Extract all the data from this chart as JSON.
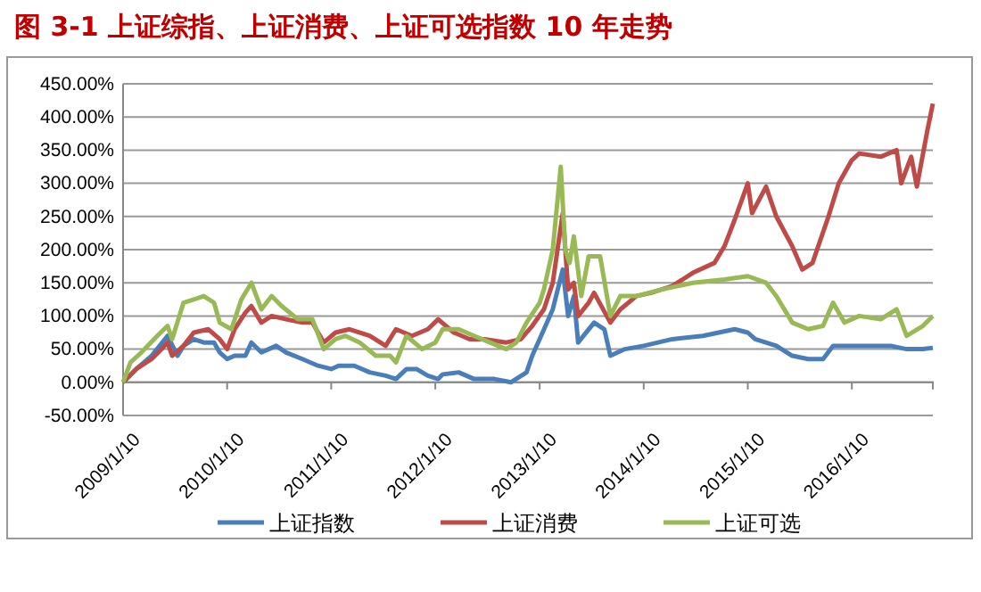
{
  "chart_data": {
    "type": "line",
    "title": "图 3-1  上证综指、上证消费、上证可选指数 10 年走势",
    "xlim": [
      "2009-01-10",
      "2016-10-20"
    ],
    "xticks": [
      {
        "value": "2009-01-10",
        "label": "2009/1/10"
      },
      {
        "value": "2010-01-10",
        "label": "2010/1/10"
      },
      {
        "value": "2011-01-10",
        "label": "2011/1/10"
      },
      {
        "value": "2012-01-10",
        "label": "2012/1/10"
      },
      {
        "value": "2013-01-10",
        "label": "2013/1/10"
      },
      {
        "value": "2014-01-10",
        "label": "2014/1/10"
      },
      {
        "value": "2015-01-10",
        "label": "2015/1/10"
      },
      {
        "value": "2016-01-10",
        "label": "2016/1/10"
      }
    ],
    "ylim": [
      -50,
      450
    ],
    "yticks": [
      {
        "value": -50,
        "label": "-50.00%"
      },
      {
        "value": 0,
        "label": "0.00%"
      },
      {
        "value": 50,
        "label": "50.00%"
      },
      {
        "value": 100,
        "label": "100.00%"
      },
      {
        "value": 150,
        "label": "150.00%"
      },
      {
        "value": 200,
        "label": "200.00%"
      },
      {
        "value": 250,
        "label": "250.00%"
      },
      {
        "value": 300,
        "label": "300.00%"
      },
      {
        "value": 350,
        "label": "350.00%"
      },
      {
        "value": 400,
        "label": "400.00%"
      },
      {
        "value": 450,
        "label": "450.00%"
      }
    ],
    "grid": "y",
    "legend": "bottom",
    "marker": "none",
    "line_style": "solid",
    "series": [
      {
        "name": "上证指数",
        "color": "#4a7ebb",
        "x": [
          "2009-01-10",
          "2009-02-25",
          "2009-04-20",
          "2009-06-15",
          "2009-07-20",
          "2009-08-10",
          "2009-09-15",
          "2009-10-20",
          "2009-11-25",
          "2009-12-15",
          "2010-01-10",
          "2010-02-05",
          "2010-03-15",
          "2010-04-05",
          "2010-05-10",
          "2010-07-01",
          "2010-08-05",
          "2010-10-01",
          "2010-11-25",
          "2011-01-10",
          "2011-02-05",
          "2011-04-01",
          "2011-05-25",
          "2011-07-20",
          "2011-08-25",
          "2011-10-01",
          "2011-11-05",
          "2011-12-15",
          "2012-01-20",
          "2012-02-05",
          "2012-04-01",
          "2012-05-25",
          "2012-08-05",
          "2012-10-01",
          "2012-11-25",
          "2012-12-15",
          "2013-01-15",
          "2013-02-25",
          "2013-04-01",
          "2013-04-20",
          "2013-05-10",
          "2013-05-25",
          "2013-07-20",
          "2013-08-25",
          "2013-09-15",
          "2013-11-05",
          "2014-01-10",
          "2014-04-20",
          "2014-08-05",
          "2014-11-25",
          "2015-01-10",
          "2015-02-05",
          "2015-04-20",
          "2015-06-15",
          "2015-08-10",
          "2015-10-01",
          "2015-11-05",
          "2016-01-10",
          "2016-03-15",
          "2016-05-25",
          "2016-07-20",
          "2016-09-15",
          "2016-10-20"
        ],
        "values": [
          0,
          20,
          40,
          70,
          40,
          55,
          65,
          60,
          60,
          45,
          35,
          40,
          40,
          60,
          45,
          55,
          45,
          35,
          25,
          20,
          25,
          25,
          15,
          10,
          5,
          20,
          20,
          10,
          5,
          12,
          15,
          5,
          5,
          0,
          15,
          40,
          70,
          110,
          170,
          100,
          130,
          60,
          90,
          80,
          40,
          50,
          55,
          65,
          70,
          80,
          75,
          65,
          55,
          40,
          35,
          35,
          55,
          55,
          55,
          55,
          50,
          50,
          52
        ]
      },
      {
        "name": "上证消费",
        "color": "#be4b48",
        "x": [
          "2009-01-10",
          "2009-02-25",
          "2009-04-20",
          "2009-05-25",
          "2009-06-15",
          "2009-07-01",
          "2009-08-10",
          "2009-09-15",
          "2009-11-05",
          "2009-12-15",
          "2010-01-10",
          "2010-02-05",
          "2010-03-15",
          "2010-04-05",
          "2010-05-10",
          "2010-06-15",
          "2010-08-05",
          "2010-10-01",
          "2010-11-05",
          "2010-12-15",
          "2011-01-25",
          "2011-03-15",
          "2011-05-25",
          "2011-07-20",
          "2011-08-25",
          "2011-10-20",
          "2011-12-15",
          "2012-01-20",
          "2012-03-15",
          "2012-05-10",
          "2012-07-01",
          "2012-09-15",
          "2012-11-05",
          "2012-12-15",
          "2013-01-25",
          "2013-02-25",
          "2013-04-01",
          "2013-04-20",
          "2013-05-10",
          "2013-05-25",
          "2013-07-01",
          "2013-07-20",
          "2013-09-15",
          "2013-10-20",
          "2013-12-15",
          "2014-02-05",
          "2014-04-20",
          "2014-07-01",
          "2014-09-15",
          "2014-10-20",
          "2014-11-25",
          "2015-01-10",
          "2015-01-25",
          "2015-03-15",
          "2015-04-20",
          "2015-06-15",
          "2015-07-20",
          "2015-08-25",
          "2015-10-20",
          "2015-11-25",
          "2016-01-10",
          "2016-02-05",
          "2016-04-20",
          "2016-06-15",
          "2016-07-01",
          "2016-08-05",
          "2016-08-25",
          "2016-10-01",
          "2016-10-20"
        ],
        "values": [
          0,
          20,
          35,
          50,
          60,
          40,
          55,
          75,
          80,
          65,
          50,
          80,
          105,
          115,
          90,
          100,
          95,
          90,
          90,
          60,
          75,
          80,
          70,
          55,
          80,
          70,
          80,
          95,
          75,
          65,
          65,
          60,
          65,
          85,
          110,
          150,
          255,
          140,
          150,
          100,
          120,
          135,
          90,
          110,
          130,
          135,
          145,
          165,
          180,
          205,
          245,
          300,
          255,
          295,
          250,
          205,
          170,
          180,
          250,
          300,
          335,
          345,
          340,
          350,
          300,
          340,
          295,
          380,
          420
        ]
      },
      {
        "name": "上证可选",
        "color": "#98b954",
        "x": [
          "2009-01-10",
          "2009-02-05",
          "2009-03-15",
          "2009-05-10",
          "2009-06-15",
          "2009-07-01",
          "2009-08-10",
          "2009-09-15",
          "2009-10-20",
          "2009-11-25",
          "2009-12-15",
          "2010-01-25",
          "2010-03-01",
          "2010-04-05",
          "2010-05-10",
          "2010-06-15",
          "2010-07-20",
          "2010-09-15",
          "2010-11-05",
          "2010-12-15",
          "2011-01-25",
          "2011-03-01",
          "2011-04-20",
          "2011-06-15",
          "2011-08-05",
          "2011-08-25",
          "2011-10-01",
          "2011-11-25",
          "2012-01-10",
          "2012-02-05",
          "2012-04-01",
          "2012-05-25",
          "2012-07-20",
          "2012-09-15",
          "2012-10-20",
          "2012-11-25",
          "2013-01-10",
          "2013-01-25",
          "2013-02-25",
          "2013-03-25",
          "2013-04-10",
          "2013-04-25",
          "2013-05-10",
          "2013-06-05",
          "2013-07-01",
          "2013-08-10",
          "2013-09-15",
          "2013-10-20",
          "2013-12-15",
          "2014-03-15",
          "2014-07-01",
          "2014-10-20",
          "2015-01-10",
          "2015-03-15",
          "2015-04-20",
          "2015-06-15",
          "2015-08-10",
          "2015-10-01",
          "2015-11-05",
          "2015-12-15",
          "2016-02-05",
          "2016-04-20",
          "2016-06-15",
          "2016-07-20",
          "2016-09-15",
          "2016-10-20"
        ],
        "values": [
          0,
          30,
          45,
          70,
          85,
          65,
          120,
          125,
          130,
          120,
          90,
          80,
          125,
          150,
          110,
          130,
          115,
          95,
          95,
          50,
          65,
          70,
          60,
          40,
          40,
          30,
          70,
          50,
          60,
          80,
          80,
          70,
          60,
          50,
          60,
          90,
          120,
          140,
          200,
          325,
          200,
          180,
          220,
          130,
          190,
          190,
          100,
          130,
          130,
          140,
          150,
          155,
          160,
          150,
          130,
          90,
          80,
          85,
          120,
          90,
          100,
          95,
          110,
          70,
          85,
          100
        ]
      }
    ]
  }
}
